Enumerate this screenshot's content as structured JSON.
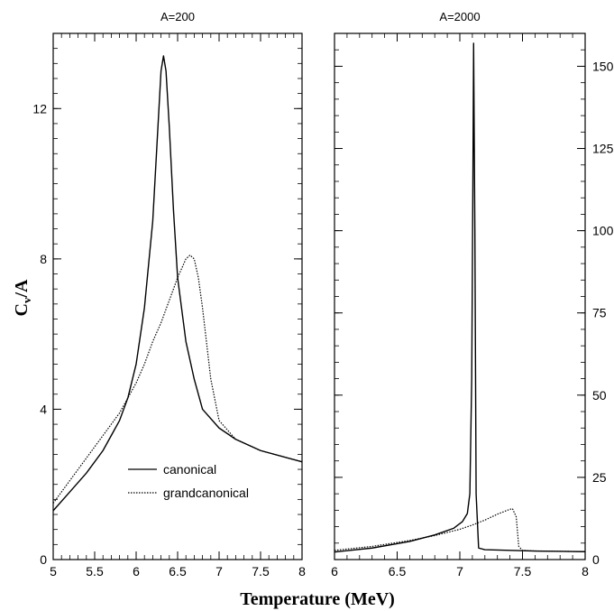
{
  "figure": {
    "xlabel": "Temperature (MeV)",
    "ylabel_main": "C",
    "ylabel_sub": "v",
    "ylabel_tail": "/A"
  },
  "chart_data": [
    {
      "type": "line",
      "title": "A=200",
      "xlim": [
        5,
        8
      ],
      "ylim": [
        0,
        14
      ],
      "x_ticks": [
        5,
        5.5,
        6,
        6.5,
        7,
        7.5,
        8
      ],
      "x_tick_labels": [
        "5",
        "5.5",
        "6",
        "6.5",
        "7",
        "7.5",
        "8"
      ],
      "y_ticks": [
        0,
        4,
        8,
        12
      ],
      "y_tick_labels": [
        "0",
        "4",
        "8",
        "12"
      ],
      "y_axis_side": "left",
      "legend": {
        "placement": "lower-center",
        "entries": [
          "canonical",
          "grandcanonical"
        ]
      },
      "series": [
        {
          "name": "canonical",
          "style": "solid",
          "x": [
            5.0,
            5.2,
            5.4,
            5.6,
            5.8,
            5.9,
            6.0,
            6.1,
            6.2,
            6.25,
            6.3,
            6.33,
            6.36,
            6.4,
            6.45,
            6.5,
            6.6,
            6.7,
            6.8,
            7.0,
            7.2,
            7.5,
            8.0
          ],
          "y": [
            1.3,
            1.8,
            2.3,
            2.9,
            3.7,
            4.3,
            5.2,
            6.7,
            9.0,
            11.0,
            13.0,
            13.4,
            13.0,
            11.5,
            9.3,
            7.5,
            5.8,
            4.8,
            4.0,
            3.5,
            3.2,
            2.9,
            2.6
          ]
        },
        {
          "name": "grandcanonical",
          "style": "dotted",
          "x": [
            5.0,
            5.2,
            5.4,
            5.6,
            5.8,
            6.0,
            6.1,
            6.2,
            6.3,
            6.4,
            6.5,
            6.6,
            6.65,
            6.7,
            6.75,
            6.8,
            6.9,
            7.0,
            7.2,
            7.5,
            8.0
          ],
          "y": [
            1.5,
            2.1,
            2.7,
            3.3,
            3.9,
            4.7,
            5.2,
            5.8,
            6.3,
            6.9,
            7.5,
            8.0,
            8.1,
            8.0,
            7.5,
            6.7,
            4.8,
            3.7,
            3.2,
            2.9,
            2.6
          ]
        }
      ]
    },
    {
      "type": "line",
      "title": "A=2000",
      "xlim": [
        6,
        8
      ],
      "ylim": [
        0,
        160
      ],
      "x_ticks": [
        6,
        6.5,
        7,
        7.5,
        8
      ],
      "x_tick_labels": [
        "6",
        "6.5",
        "7",
        "7.5",
        "8"
      ],
      "y_ticks": [
        0,
        25,
        50,
        75,
        100,
        125,
        150
      ],
      "y_tick_labels": [
        "0",
        "25",
        "50",
        "75",
        "100",
        "125",
        "150"
      ],
      "y_axis_side": "right",
      "series": [
        {
          "name": "canonical",
          "style": "solid",
          "x": [
            6.0,
            6.3,
            6.6,
            6.8,
            6.95,
            7.02,
            7.06,
            7.08,
            7.095,
            7.105,
            7.11,
            7.12,
            7.13,
            7.15,
            7.2,
            7.4,
            7.6,
            8.0
          ],
          "y": [
            2.3,
            3.5,
            5.5,
            7.5,
            9.5,
            11.5,
            14.0,
            20.0,
            55.0,
            120.0,
            157.0,
            100.0,
            20.0,
            3.5,
            3.0,
            2.8,
            2.6,
            2.4
          ]
        },
        {
          "name": "grandcanonical",
          "style": "dotted",
          "x": [
            6.0,
            6.3,
            6.6,
            6.8,
            7.0,
            7.1,
            7.2,
            7.3,
            7.38,
            7.42,
            7.45,
            7.47,
            7.5,
            7.6,
            8.0
          ],
          "y": [
            2.8,
            4.0,
            5.8,
            7.3,
            9.2,
            10.5,
            12.0,
            13.8,
            15.0,
            15.5,
            13.0,
            4.0,
            2.8,
            2.6,
            2.4
          ]
        }
      ]
    }
  ]
}
